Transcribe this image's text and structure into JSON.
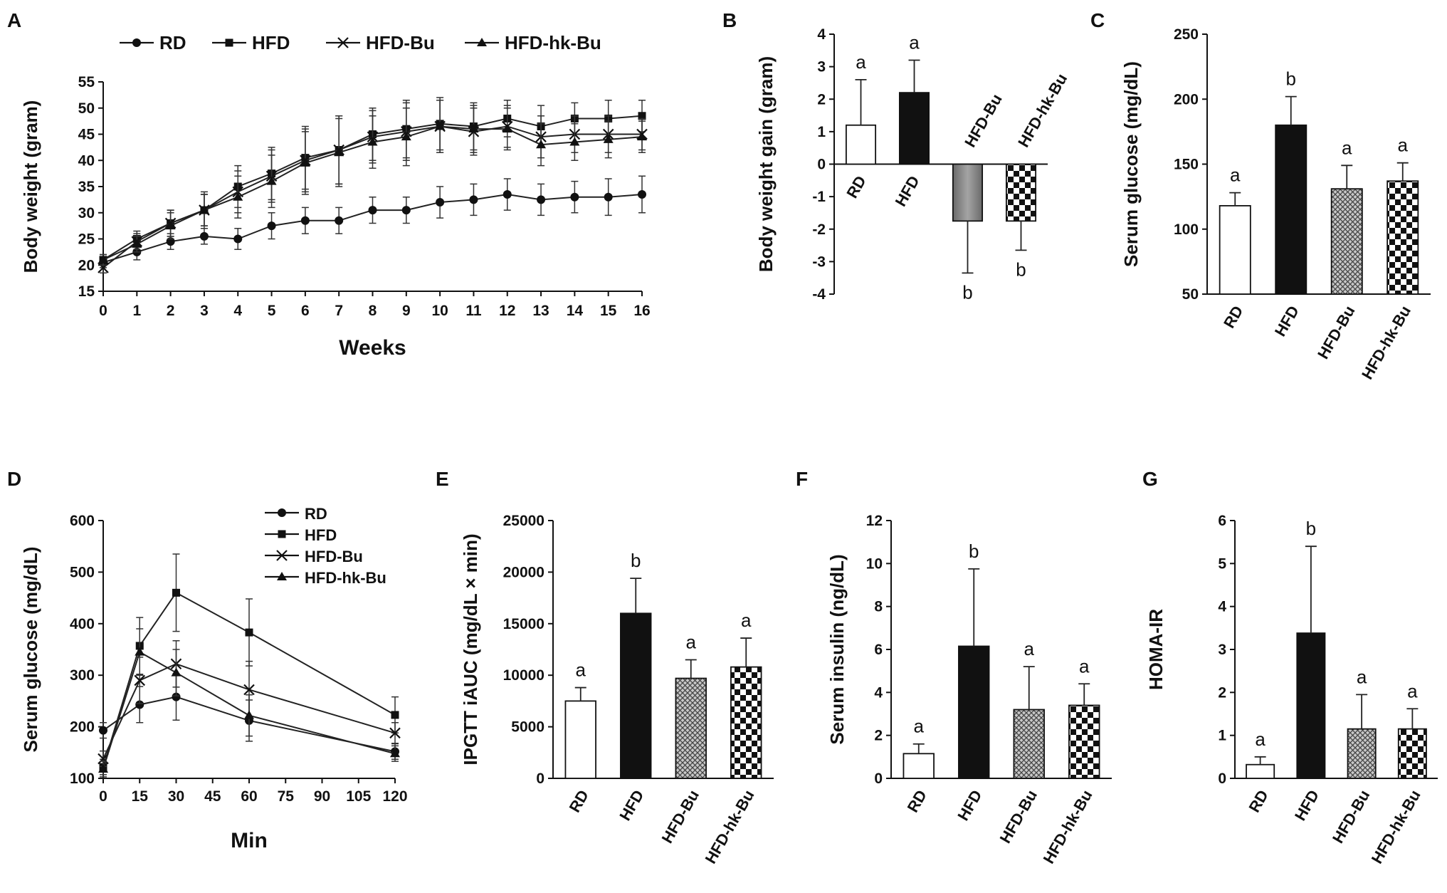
{
  "chart_data": [
    {
      "panel": "A",
      "type": "line",
      "xlabel": "Weeks",
      "ylabel": "Body weight (gram)",
      "xlim": [
        0,
        16
      ],
      "ylim": [
        15,
        55
      ],
      "xticks": [
        0,
        1,
        2,
        3,
        4,
        5,
        6,
        7,
        8,
        9,
        10,
        11,
        12,
        13,
        14,
        15,
        16
      ],
      "yticks": [
        15,
        20,
        25,
        30,
        35,
        40,
        45,
        50,
        55
      ],
      "legend_position": "top",
      "x": [
        0,
        1,
        2,
        3,
        4,
        5,
        6,
        7,
        8,
        9,
        10,
        11,
        12,
        13,
        14,
        15,
        16
      ],
      "series": [
        {
          "name": "RD",
          "marker": "circle",
          "values": [
            20.5,
            22.5,
            24.5,
            25.5,
            25,
            27.5,
            28.5,
            28.5,
            30.5,
            30.5,
            32,
            32.5,
            33.5,
            32.5,
            33,
            33,
            33.5
          ],
          "errors": [
            1,
            1.5,
            1.5,
            1.5,
            2,
            2.5,
            2.5,
            2.5,
            2.5,
            2.5,
            3,
            3,
            3,
            3,
            3,
            3.5,
            3.5
          ]
        },
        {
          "name": "HFD",
          "marker": "square",
          "values": [
            21,
            25,
            28,
            30.5,
            35,
            37.5,
            40.5,
            42,
            45,
            46,
            47,
            46.5,
            48,
            46.5,
            48,
            48,
            48.5
          ],
          "errors": [
            1,
            1.5,
            2.5,
            3.5,
            4,
            5,
            6,
            6.5,
            5,
            5.5,
            5,
            4.5,
            3.5,
            4,
            3,
            3.5,
            3
          ]
        },
        {
          "name": "HFD-Bu",
          "marker": "x",
          "values": [
            19.5,
            24.5,
            28,
            30.5,
            34,
            37,
            40,
            42,
            44.5,
            45.5,
            46.5,
            45.5,
            46.5,
            44.5,
            45,
            45,
            45
          ],
          "errors": [
            1,
            1.5,
            2.5,
            3,
            4,
            5,
            6,
            6.5,
            5,
            5.5,
            5,
            4.5,
            4,
            4,
            3.5,
            3.5,
            3
          ]
        },
        {
          "name": "HFD-hk-Bu",
          "marker": "triangle",
          "values": [
            21,
            24,
            27.5,
            30.5,
            33,
            36,
            39.5,
            41.5,
            43.5,
            44.5,
            46.5,
            46,
            46,
            43,
            43.5,
            44,
            44.5
          ],
          "errors": [
            1,
            1.5,
            2.5,
            3,
            4,
            5,
            6,
            6.5,
            5,
            5.5,
            5,
            4.5,
            4,
            4,
            3.5,
            3.5,
            3
          ]
        }
      ]
    },
    {
      "panel": "B",
      "type": "bar",
      "ylabel": "Body weight  gain (gram)",
      "ylim": [
        -4,
        4
      ],
      "yticks": [
        -4,
        -3,
        -2,
        -1,
        0,
        1,
        2,
        3,
        4
      ],
      "categories": [
        "RD",
        "HFD",
        "HFD-Bu",
        "HFD-hk-Bu"
      ],
      "values": [
        1.2,
        2.2,
        -1.75,
        -1.75
      ],
      "errors": [
        1.4,
        1.0,
        1.6,
        0.9
      ],
      "letters": [
        "a",
        "a",
        "b",
        "b"
      ],
      "fills": [
        "white",
        "black",
        "gray",
        "checker"
      ]
    },
    {
      "panel": "C",
      "type": "bar",
      "ylabel": "Serum glucose (mg/dL)",
      "ylim": [
        50,
        250
      ],
      "yticks": [
        50,
        100,
        150,
        200,
        250
      ],
      "categories": [
        "RD",
        "HFD",
        "HFD-Bu",
        "HFD-hk-Bu"
      ],
      "values": [
        118,
        180,
        131,
        137
      ],
      "errors": [
        10,
        22,
        18,
        14
      ],
      "letters": [
        "a",
        "b",
        "a",
        "a"
      ],
      "fills": [
        "white",
        "black",
        "crosshatch",
        "checker"
      ]
    },
    {
      "panel": "D",
      "type": "line",
      "xlabel": "Min",
      "ylabel": "Serum glucose (mg/dL)",
      "xlim": [
        0,
        120
      ],
      "ylim": [
        100,
        600
      ],
      "xticks": [
        0,
        15,
        30,
        45,
        60,
        75,
        90,
        105,
        120
      ],
      "yticks": [
        100,
        200,
        300,
        400,
        500,
        600
      ],
      "legend_position": "top-right",
      "x": [
        0,
        15,
        30,
        60,
        120
      ],
      "series": [
        {
          "name": "RD",
          "marker": "circle",
          "values": [
            193,
            243,
            258,
            212,
            152
          ],
          "errors": [
            15,
            35,
            45,
            40,
            15
          ]
        },
        {
          "name": "HFD",
          "marker": "square",
          "values": [
            122,
            357,
            460,
            383,
            223
          ],
          "errors": [
            15,
            55,
            75,
            65,
            35
          ]
        },
        {
          "name": "HFD-Bu",
          "marker": "x",
          "values": [
            138,
            290,
            322,
            272,
            188
          ],
          "errors": [
            15,
            45,
            45,
            55,
            20
          ]
        },
        {
          "name": "HFD-hk-Bu",
          "marker": "triangle",
          "values": [
            118,
            345,
            305,
            222,
            148
          ],
          "errors": [
            15,
            45,
            45,
            40,
            15
          ]
        }
      ]
    },
    {
      "panel": "E",
      "type": "bar",
      "ylabel": "IPGTT iAUC (mg/dL × min)",
      "ylim": [
        0,
        25000
      ],
      "yticks": [
        0,
        5000,
        10000,
        15000,
        20000,
        25000
      ],
      "categories": [
        "RD",
        "HFD",
        "HFD-Bu",
        "HFD-hk-Bu"
      ],
      "values": [
        7500,
        16000,
        9700,
        10800
      ],
      "errors": [
        1300,
        3400,
        1800,
        2800
      ],
      "letters": [
        "a",
        "b",
        "a",
        "a"
      ],
      "fills": [
        "white",
        "black",
        "crosshatch",
        "checker"
      ]
    },
    {
      "panel": "F",
      "type": "bar",
      "ylabel": "Serum insulin (ng/dL)",
      "ylim": [
        0,
        12
      ],
      "yticks": [
        0,
        2,
        4,
        6,
        8,
        10,
        12
      ],
      "categories": [
        "RD",
        "HFD",
        "HFD-Bu",
        "HFD-hk-Bu"
      ],
      "values": [
        1.15,
        6.15,
        3.2,
        3.4
      ],
      "errors": [
        0.45,
        3.6,
        2.0,
        1.0
      ],
      "letters": [
        "a",
        "b",
        "a",
        "a"
      ],
      "fills": [
        "white",
        "black",
        "crosshatch",
        "checker"
      ]
    },
    {
      "panel": "G",
      "type": "bar",
      "ylabel": "HOMA-IR",
      "ylim": [
        0,
        6
      ],
      "yticks": [
        0,
        1,
        2,
        3,
        4,
        5,
        6
      ],
      "categories": [
        "RD",
        "HFD",
        "HFD-Bu",
        "HFD-hk-Bu"
      ],
      "values": [
        0.32,
        3.38,
        1.15,
        1.15
      ],
      "errors": [
        0.18,
        2.02,
        0.8,
        0.47
      ],
      "letters": [
        "a",
        "b",
        "a",
        "a"
      ],
      "fills": [
        "white",
        "black",
        "crosshatch",
        "checker"
      ]
    }
  ]
}
